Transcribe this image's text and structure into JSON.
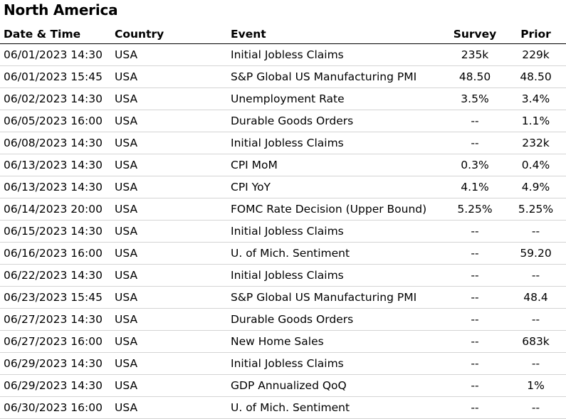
{
  "section_title": "North America",
  "columns": {
    "datetime": "Date & Time",
    "country": "Country",
    "event": "Event",
    "survey": "Survey",
    "prior": "Prior"
  },
  "rows": [
    {
      "datetime": "06/01/2023 14:30",
      "country": "USA",
      "event": "Initial Jobless Claims",
      "survey": "235k",
      "prior": "229k"
    },
    {
      "datetime": "06/01/2023 15:45",
      "country": "USA",
      "event": "S&P Global US Manufacturing PMI",
      "survey": "48.50",
      "prior": "48.50"
    },
    {
      "datetime": "06/02/2023 14:30",
      "country": "USA",
      "event": "Unemployment Rate",
      "survey": "3.5%",
      "prior": "3.4%"
    },
    {
      "datetime": "06/05/2023 16:00",
      "country": "USA",
      "event": "Durable Goods Orders",
      "survey": "--",
      "prior": "1.1%"
    },
    {
      "datetime": "06/08/2023 14:30",
      "country": "USA",
      "event": "Initial Jobless Claims",
      "survey": "--",
      "prior": "232k"
    },
    {
      "datetime": "06/13/2023 14:30",
      "country": "USA",
      "event": "CPI MoM",
      "survey": "0.3%",
      "prior": "0.4%"
    },
    {
      "datetime": "06/13/2023 14:30",
      "country": "USA",
      "event": "CPI YoY",
      "survey": "4.1%",
      "prior": "4.9%"
    },
    {
      "datetime": "06/14/2023 20:00",
      "country": "USA",
      "event": "FOMC Rate Decision (Upper Bound)",
      "survey": "5.25%",
      "prior": "5.25%"
    },
    {
      "datetime": "06/15/2023 14:30",
      "country": "USA",
      "event": "Initial Jobless Claims",
      "survey": "--",
      "prior": "--"
    },
    {
      "datetime": "06/16/2023 16:00",
      "country": "USA",
      "event": "U. of Mich. Sentiment",
      "survey": "--",
      "prior": "59.20"
    },
    {
      "datetime": "06/22/2023 14:30",
      "country": "USA",
      "event": "Initial Jobless Claims",
      "survey": "--",
      "prior": "--"
    },
    {
      "datetime": "06/23/2023 15:45",
      "country": "USA",
      "event": "S&P Global US Manufacturing PMI",
      "survey": "--",
      "prior": "48.4"
    },
    {
      "datetime": "06/27/2023 14:30",
      "country": "USA",
      "event": "Durable Goods Orders",
      "survey": "--",
      "prior": "--"
    },
    {
      "datetime": "06/27/2023 16:00",
      "country": "USA",
      "event": "New Home Sales",
      "survey": "--",
      "prior": "683k"
    },
    {
      "datetime": "06/29/2023 14:30",
      "country": "USA",
      "event": "Initial Jobless Claims",
      "survey": "--",
      "prior": "--"
    },
    {
      "datetime": "06/29/2023 14:30",
      "country": "USA",
      "event": "GDP Annualized QoQ",
      "survey": "--",
      "prior": "1%"
    },
    {
      "datetime": "06/30/2023 16:00",
      "country": "USA",
      "event": "U. of Mich. Sentiment",
      "survey": "--",
      "prior": "--"
    }
  ]
}
